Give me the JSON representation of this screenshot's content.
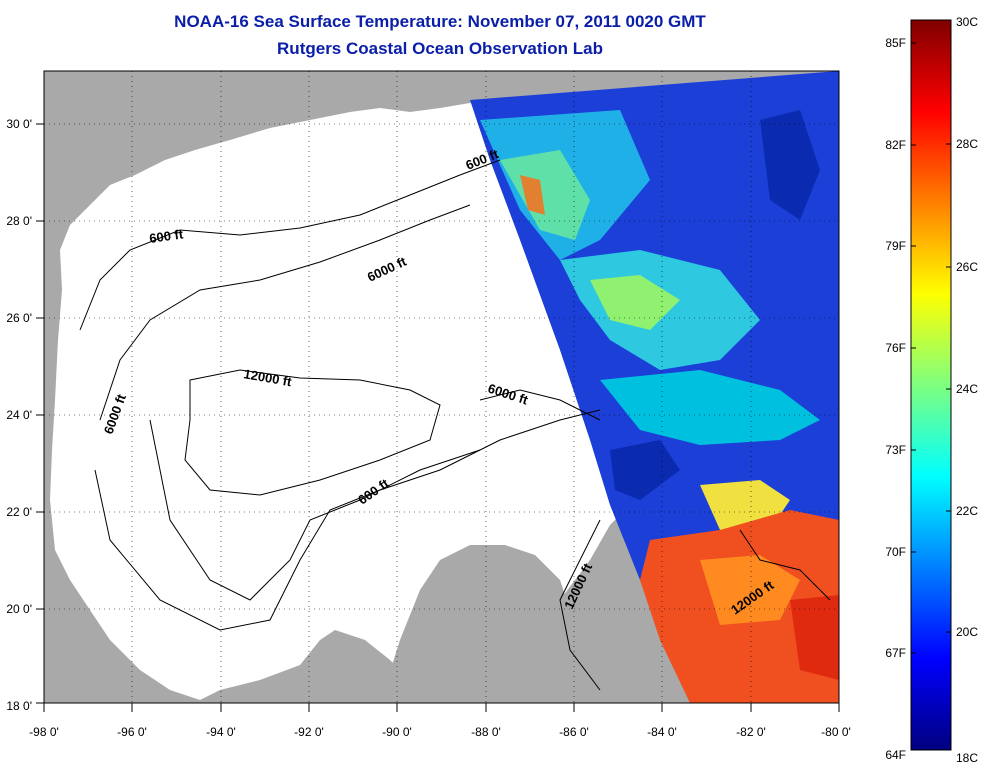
{
  "title": "NOAA-16 Sea Surface Temperature:  November 07, 2011 0020 GMT",
  "subtitle": "Rutgers Coastal Ocean Observation Lab",
  "map": {
    "lon_labels": [
      "-98 0'",
      "-96 0'",
      "-94 0'",
      "-92 0'",
      "-90 0'",
      "-88 0'",
      "-86 0'",
      "-84 0'",
      "-82 0'",
      "-80 0'"
    ],
    "lat_labels": [
      "30 0'",
      "28 0'",
      "26 0'",
      "24 0'",
      "22 0'",
      "20 0'",
      "18 0'"
    ],
    "lon_range": [
      -98,
      -80
    ],
    "lat_range": [
      18,
      31
    ],
    "contour_labels": [
      "600 ft",
      "600 ft",
      "6000 ft",
      "6000 ft",
      "12000 ft",
      "6000 ft",
      "600 ft",
      "12000 ft",
      "12000 ft"
    ]
  },
  "colorbar": {
    "f_labels": [
      "85F",
      "82F",
      "79F",
      "76F",
      "73F",
      "70F",
      "67F",
      "64F"
    ],
    "c_labels": [
      "30C",
      "28C",
      "26C",
      "24C",
      "22C",
      "20C",
      "18C"
    ],
    "colors": [
      "#7f0000",
      "#ff0000",
      "#ff7f00",
      "#ffff00",
      "#7fff7f",
      "#00ffff",
      "#007fff",
      "#0000ff",
      "#00007f"
    ]
  },
  "colors": {
    "land": "#a9a9a9",
    "water": "#ffffff",
    "title": "#0a1ea8"
  }
}
